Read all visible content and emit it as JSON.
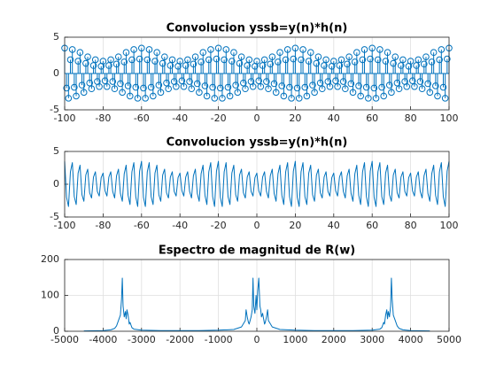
{
  "chart_data": [
    {
      "type": "stem",
      "title": "Convolucion yssb=y(n)*h(n)",
      "color": "#0072bd",
      "grid": true,
      "xlim": [
        -100,
        100
      ],
      "xticks": [
        -100,
        -80,
        -60,
        -40,
        -20,
        0,
        20,
        40,
        60,
        80,
        100
      ],
      "ylim": [
        -5,
        5
      ],
      "yticks": [
        -5,
        0,
        5
      ],
      "x": [
        -100,
        -99,
        -98,
        -97,
        -96,
        -95,
        -94,
        -93,
        -92,
        -91,
        -90,
        -89,
        -88,
        -87,
        -86,
        -85,
        -84,
        -83,
        -82,
        -81,
        -80,
        -79,
        -78,
        -77,
        -76,
        -75,
        -74,
        -73,
        -72,
        -71,
        -70,
        -69,
        -68,
        -67,
        -66,
        -65,
        -64,
        -63,
        -62,
        -61,
        -60,
        -59,
        -58,
        -57,
        -56,
        -55,
        -54,
        -53,
        -52,
        -51,
        -50,
        -49,
        -48,
        -47,
        -46,
        -45,
        -44,
        -43,
        -42,
        -41,
        -40,
        -39,
        -38,
        -37,
        -36,
        -35,
        -34,
        -33,
        -32,
        -31,
        -30,
        -29,
        -28,
        -27,
        -26,
        -25,
        -24,
        -23,
        -22,
        -21,
        -20,
        -19,
        -18,
        -17,
        -16,
        -15,
        -14,
        -13,
        -12,
        -11,
        -10,
        -9,
        -8,
        -7,
        -6,
        -5,
        -4,
        -3,
        -2,
        -1,
        0,
        1,
        2,
        3,
        4,
        5,
        6,
        7,
        8,
        9,
        10,
        11,
        12,
        13,
        14,
        15,
        16,
        17,
        18,
        19,
        20,
        21,
        22,
        23,
        24,
        25,
        26,
        27,
        28,
        29,
        30,
        31,
        32,
        33,
        34,
        35,
        36,
        37,
        38,
        39,
        40,
        41,
        42,
        43,
        44,
        45,
        46,
        47,
        48,
        49,
        50,
        51,
        52,
        53,
        54,
        55,
        56,
        57,
        58,
        59,
        60,
        61,
        62,
        63,
        64,
        65,
        66,
        67,
        68,
        69,
        70,
        71,
        72,
        73,
        74,
        75,
        76,
        77,
        78,
        79,
        80,
        81,
        82,
        83,
        84,
        85,
        86,
        87,
        88,
        89,
        90,
        91,
        92,
        93,
        94,
        95,
        96,
        97,
        98,
        99,
        100
      ],
      "values": [
        3.5,
        -2.0,
        -3.4,
        1.9,
        3.3,
        -1.9,
        -3.1,
        1.7,
        2.9,
        -1.6,
        -2.6,
        1.4,
        2.3,
        -1.3,
        -2.1,
        1.1,
        1.9,
        -1.1,
        -1.8,
        1.0,
        1.7,
        -1.0,
        -1.8,
        1.1,
        1.9,
        -1.1,
        -2.1,
        1.3,
        2.3,
        -1.4,
        -2.6,
        1.6,
        2.9,
        -1.7,
        -3.1,
        1.9,
        3.3,
        -1.9,
        -3.4,
        2.0,
        3.5,
        -2.0,
        -3.4,
        1.9,
        3.3,
        -1.9,
        -3.1,
        1.7,
        2.9,
        -1.6,
        -2.6,
        1.4,
        2.3,
        -1.3,
        -2.1,
        1.1,
        1.9,
        -1.1,
        -1.8,
        1.0,
        1.7,
        -1.0,
        -1.8,
        1.1,
        1.9,
        -1.1,
        -2.1,
        1.3,
        2.3,
        -1.4,
        -2.6,
        1.6,
        2.9,
        -1.7,
        -3.1,
        1.9,
        3.3,
        -1.9,
        -3.4,
        2.0,
        3.5,
        -2.0,
        -3.4,
        1.9,
        3.3,
        -1.9,
        -3.1,
        1.7,
        2.9,
        -1.6,
        -2.6,
        1.4,
        2.3,
        -1.3,
        -2.1,
        1.1,
        1.9,
        -1.1,
        -1.8,
        1.0,
        1.7,
        -1.0,
        -1.8,
        1.1,
        1.9,
        -1.1,
        -2.1,
        1.3,
        2.3,
        -1.4,
        -2.6,
        1.6,
        2.9,
        -1.7,
        -3.1,
        1.9,
        3.3,
        -1.9,
        -3.4,
        2.0,
        3.5,
        -2.0,
        -3.4,
        1.9,
        3.3,
        -1.9,
        -3.1,
        1.7,
        2.9,
        -1.6,
        -2.6,
        1.4,
        2.3,
        -1.3,
        -2.1,
        1.1,
        1.9,
        -1.1,
        -1.8,
        1.0,
        1.7,
        -1.0,
        -1.8,
        1.1,
        1.9,
        -1.1,
        -2.1,
        1.3,
        2.3,
        -1.4,
        -2.6,
        1.6,
        2.9,
        -1.7,
        -3.1,
        1.9,
        3.3,
        -1.9,
        -3.4,
        2.0,
        3.5,
        -2.0,
        -3.4,
        1.9,
        3.3,
        -1.9,
        -3.1,
        1.7,
        2.9,
        -1.6,
        -2.6,
        1.4,
        2.3,
        -1.3,
        -2.1,
        1.1,
        1.9,
        -1.1,
        -1.8,
        1.0,
        1.7,
        -1.0,
        -1.8,
        1.1,
        1.9,
        -1.1,
        -2.1,
        1.3,
        2.3,
        -1.4,
        -2.6,
        1.6,
        2.9,
        -1.7,
        -3.1,
        1.9,
        3.3,
        -1.9,
        -3.4,
        2.0,
        3.5
      ]
    },
    {
      "type": "line",
      "title": "Convolucion yssb=y(n)*h(n)",
      "color": "#0072bd",
      "grid": true,
      "xlim": [
        -100,
        100
      ],
      "xticks": [
        -100,
        -80,
        -60,
        -40,
        -20,
        0,
        20,
        40,
        60,
        80,
        100
      ],
      "ylim": [
        -5,
        5
      ],
      "yticks": [
        -5,
        0,
        5
      ],
      "x": [
        -100,
        -99,
        -98,
        -97,
        -96,
        -95,
        -94,
        -93,
        -92,
        -91,
        -90,
        -89,
        -88,
        -87,
        -86,
        -85,
        -84,
        -83,
        -82,
        -81,
        -80,
        -79,
        -78,
        -77,
        -76,
        -75,
        -74,
        -73,
        -72,
        -71,
        -70,
        -69,
        -68,
        -67,
        -66,
        -65,
        -64,
        -63,
        -62,
        -61,
        -60,
        -59,
        -58,
        -57,
        -56,
        -55,
        -54,
        -53,
        -52,
        -51,
        -50,
        -49,
        -48,
        -47,
        -46,
        -45,
        -44,
        -43,
        -42,
        -41,
        -40,
        -39,
        -38,
        -37,
        -36,
        -35,
        -34,
        -33,
        -32,
        -31,
        -30,
        -29,
        -28,
        -27,
        -26,
        -25,
        -24,
        -23,
        -22,
        -21,
        -20,
        -19,
        -18,
        -17,
        -16,
        -15,
        -14,
        -13,
        -12,
        -11,
        -10,
        -9,
        -8,
        -7,
        -6,
        -5,
        -4,
        -3,
        -2,
        -1,
        0,
        1,
        2,
        3,
        4,
        5,
        6,
        7,
        8,
        9,
        10,
        11,
        12,
        13,
        14,
        15,
        16,
        17,
        18,
        19,
        20,
        21,
        22,
        23,
        24,
        25,
        26,
        27,
        28,
        29,
        30,
        31,
        32,
        33,
        34,
        35,
        36,
        37,
        38,
        39,
        40,
        41,
        42,
        43,
        44,
        45,
        46,
        47,
        48,
        49,
        50,
        51,
        52,
        53,
        54,
        55,
        56,
        57,
        58,
        59,
        60,
        61,
        62,
        63,
        64,
        65,
        66,
        67,
        68,
        69,
        70,
        71,
        72,
        73,
        74,
        75,
        76,
        77,
        78,
        79,
        80,
        81,
        82,
        83,
        84,
        85,
        86,
        87,
        88,
        89,
        90,
        91,
        92,
        93,
        94,
        95,
        96,
        97,
        98,
        99,
        100
      ],
      "values": [
        3.5,
        -2.0,
        -3.4,
        1.9,
        3.3,
        -1.9,
        -3.1,
        1.7,
        2.9,
        -1.6,
        -2.6,
        1.4,
        2.3,
        -1.3,
        -2.1,
        1.1,
        1.9,
        -1.1,
        -1.8,
        1.0,
        1.7,
        -1.0,
        -1.8,
        1.1,
        1.9,
        -1.1,
        -2.1,
        1.3,
        2.3,
        -1.4,
        -2.6,
        1.6,
        2.9,
        -1.7,
        -3.1,
        1.9,
        3.3,
        -1.9,
        -3.4,
        2.0,
        3.5,
        -2.0,
        -3.4,
        1.9,
        3.3,
        -1.9,
        -3.1,
        1.7,
        2.9,
        -1.6,
        -2.6,
        1.4,
        2.3,
        -1.3,
        -2.1,
        1.1,
        1.9,
        -1.1,
        -1.8,
        1.0,
        1.7,
        -1.0,
        -1.8,
        1.1,
        1.9,
        -1.1,
        -2.1,
        1.3,
        2.3,
        -1.4,
        -2.6,
        1.6,
        2.9,
        -1.7,
        -3.1,
        1.9,
        3.3,
        -1.9,
        -3.4,
        2.0,
        3.5,
        -2.0,
        -3.4,
        1.9,
        3.3,
        -1.9,
        -3.1,
        1.7,
        2.9,
        -1.6,
        -2.6,
        1.4,
        2.3,
        -1.3,
        -2.1,
        1.1,
        1.9,
        -1.1,
        -1.8,
        1.0,
        1.7,
        -1.0,
        -1.8,
        1.1,
        1.9,
        -1.1,
        -2.1,
        1.3,
        2.3,
        -1.4,
        -2.6,
        1.6,
        2.9,
        -1.7,
        -3.1,
        1.9,
        3.3,
        -1.9,
        -3.4,
        2.0,
        3.5,
        -2.0,
        -3.4,
        1.9,
        3.3,
        -1.9,
        -3.1,
        1.7,
        2.9,
        -1.6,
        -2.6,
        1.4,
        2.3,
        -1.3,
        -2.1,
        1.1,
        1.9,
        -1.1,
        -1.8,
        1.0,
        1.7,
        -1.0,
        -1.8,
        1.1,
        1.9,
        -1.1,
        -2.1,
        1.3,
        2.3,
        -1.4,
        -2.6,
        1.6,
        2.9,
        -1.7,
        -3.1,
        1.9,
        3.3,
        -1.9,
        -3.4,
        2.0,
        3.5,
        -2.0,
        -3.4,
        1.9,
        3.3,
        -1.9,
        -3.1,
        1.7,
        2.9,
        -1.6,
        -2.6,
        1.4,
        2.3,
        -1.3,
        -2.1,
        1.1,
        1.9,
        -1.1,
        -1.8,
        1.0,
        1.7,
        -1.0,
        -1.8,
        1.1,
        1.9,
        -1.1,
        -2.1,
        1.3,
        2.3,
        -1.4,
        -2.6,
        1.6,
        2.9,
        -1.7,
        -3.1,
        1.9,
        3.3,
        -1.9,
        -3.4,
        2.0,
        3.5
      ]
    },
    {
      "type": "line",
      "title": "Espectro de magnitud de R(w)",
      "color": "#0072bd",
      "grid": true,
      "xlim": [
        -5000,
        5000
      ],
      "xticks": [
        -5000,
        -4000,
        -3000,
        -2000,
        -1000,
        0,
        1000,
        2000,
        3000,
        4000,
        5000
      ],
      "ylim": [
        0,
        200
      ],
      "yticks": [
        0,
        100,
        200
      ],
      "x": [
        -4500,
        -4000,
        -3800,
        -3700,
        -3650,
        -3600,
        -3550,
        -3520,
        -3500,
        -3480,
        -3450,
        -3420,
        -3400,
        -3380,
        -3350,
        -3320,
        -3300,
        -3250,
        -3200,
        -3000,
        -2500,
        -2000,
        -1500,
        -1000,
        -600,
        -400,
        -300,
        -280,
        -250,
        -220,
        -200,
        -150,
        -120,
        -100,
        -80,
        -50,
        -20,
        0,
        20,
        50,
        80,
        100,
        120,
        150,
        200,
        220,
        250,
        280,
        300,
        400,
        600,
        1000,
        1500,
        2000,
        2500,
        3000,
        3200,
        3250,
        3300,
        3320,
        3350,
        3380,
        3400,
        3420,
        3450,
        3480,
        3500,
        3520,
        3550,
        3600,
        3650,
        3700,
        3800,
        4000,
        4500
      ],
      "values": [
        1,
        2,
        4,
        8,
        15,
        30,
        45,
        90,
        148,
        70,
        40,
        55,
        35,
        60,
        45,
        20,
        25,
        10,
        6,
        3,
        2,
        2,
        2,
        3,
        5,
        12,
        30,
        60,
        40,
        25,
        20,
        40,
        60,
        148,
        70,
        50,
        100,
        60,
        110,
        148,
        70,
        60,
        40,
        50,
        20,
        25,
        40,
        60,
        30,
        12,
        5,
        3,
        2,
        2,
        2,
        3,
        6,
        10,
        25,
        20,
        45,
        60,
        35,
        55,
        40,
        70,
        148,
        90,
        45,
        30,
        15,
        8,
        4,
        2,
        1
      ]
    }
  ]
}
